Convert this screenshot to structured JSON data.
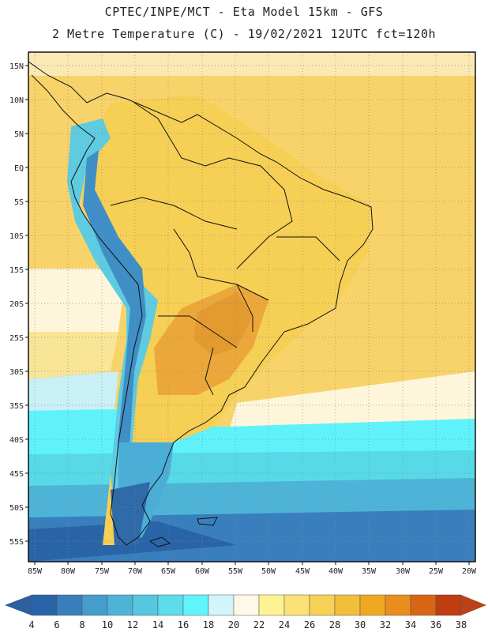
{
  "header": {
    "line1": "CPTEC/INPE/MCT -  Eta Model 15km - GFS",
    "line2": "2 Metre Temperature (C) - 19/02/2021 12UTC fct=120h"
  },
  "map": {
    "lat_ticks": [
      "15N",
      "10N",
      "5N",
      "EQ",
      "5S",
      "10S",
      "15S",
      "20S",
      "25S",
      "30S",
      "35S",
      "40S",
      "45S",
      "50S",
      "55S"
    ],
    "lon_ticks": [
      "85W",
      "80W",
      "75W",
      "70W",
      "65W",
      "60W",
      "55W",
      "50W",
      "45W",
      "40W",
      "35W",
      "30W",
      "25W",
      "20W"
    ],
    "lat_range": [
      -57.5,
      16.5
    ],
    "lon_range": [
      -86,
      -19
    ]
  },
  "colorbar": {
    "labels": [
      "4",
      "6",
      "8",
      "10",
      "12",
      "14",
      "16",
      "18",
      "20",
      "22",
      "24",
      "26",
      "28",
      "30",
      "32",
      "34",
      "36",
      "38"
    ],
    "colors": [
      "#2a64a8",
      "#3a7fbd",
      "#459dcb",
      "#4db4d8",
      "#55c8e0",
      "#5ddcea",
      "#5ff5fb",
      "#d2f4fb",
      "#fef8e6",
      "#fdf393",
      "#fbe176",
      "#f6d155",
      "#f2bf3b",
      "#f0a821",
      "#e98e1c",
      "#d86514",
      "#bf3d0e"
    ],
    "low_arrow_color": "#2c5f9e",
    "high_arrow_color": "#b8431b"
  }
}
